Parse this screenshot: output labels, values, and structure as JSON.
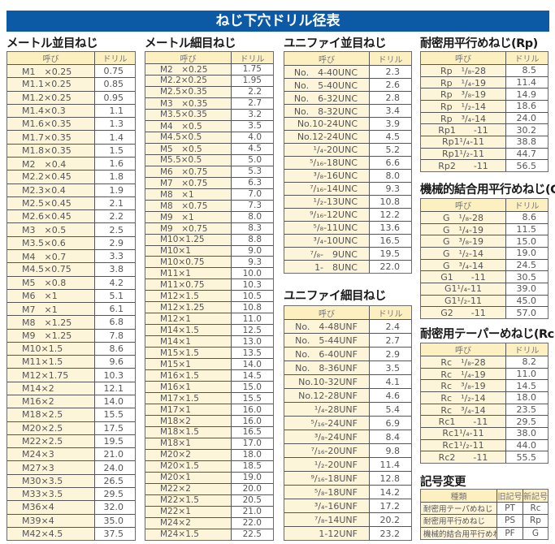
{
  "title": "ねじ下穴ドリル径表",
  "tables": {
    "metric_coarse": {
      "title": "メートル並目ねじ",
      "headers": [
        "呼び",
        "ドリル"
      ],
      "rows": [
        [
          "M1　×0.25",
          "0.75"
        ],
        [
          "M1.1×0.25",
          "0.85"
        ],
        [
          "M1.2×0.25",
          "0.95"
        ],
        [
          "M1.4×0.3",
          "1.1"
        ],
        [
          "M1.6×0.35",
          "1.3"
        ],
        [
          "M1.7×0.35",
          "1.4"
        ],
        [
          "M1.8×0.35",
          "1.5"
        ],
        [
          "M2　×0.4",
          "1.6"
        ],
        [
          "M2.2×0.45",
          "1.8"
        ],
        [
          "M2.3×0.4",
          "1.9"
        ],
        [
          "M2.5×0.45",
          "2.1"
        ],
        [
          "M2.6×0.45",
          "2.2"
        ],
        [
          "M3　×0.5",
          "2.5"
        ],
        [
          "M3.5×0.6",
          "2.9"
        ],
        [
          "M4　×0.7",
          "3.3"
        ],
        [
          "M4.5×0.75",
          "3.8"
        ],
        [
          "M5　×0.8",
          "4.2"
        ],
        [
          "M6　×1",
          "5.1"
        ],
        [
          "M7　×1",
          "6.1"
        ],
        [
          "M8　×1.25",
          "6.8"
        ],
        [
          "M9　×1.25",
          "7.8"
        ],
        [
          "M10×1.5",
          "8.6"
        ],
        [
          "M11×1.5",
          "9.6"
        ],
        [
          "M12×1.75",
          "10.3"
        ],
        [
          "M14×2",
          "12.1"
        ],
        [
          "M16×2",
          "14.0"
        ],
        [
          "M18×2.5",
          "15.5"
        ],
        [
          "M20×2.5",
          "17.5"
        ],
        [
          "M22×2.5",
          "19.5"
        ],
        [
          "M24×3",
          "21.0"
        ],
        [
          "M27×3",
          "24.0"
        ],
        [
          "M30×3.5",
          "26.5"
        ],
        [
          "M33×3.5",
          "29.5"
        ],
        [
          "M36×4",
          "32.0"
        ],
        [
          "M39×4",
          "35.0"
        ],
        [
          "M42×4.5",
          "37.5"
        ]
      ]
    },
    "metric_fine": {
      "title": "メートル細目ねじ",
      "headers": [
        "呼び",
        "ドリル"
      ],
      "rows": [
        [
          "M2　×0.25",
          "1.75"
        ],
        [
          "M2.2×0.25",
          "1.95"
        ],
        [
          "M2.5×0.35",
          "2.2"
        ],
        [
          "M3　×0.35",
          "2.7"
        ],
        [
          "M3.5×0.35",
          "3.2"
        ],
        [
          "M4　×0.5",
          "3.5"
        ],
        [
          "M4.5×0.5",
          "4.0"
        ],
        [
          "M5　×0.5",
          "4.5"
        ],
        [
          "M5.5×0.5",
          "5.0"
        ],
        [
          "M6　×0.75",
          "5.3"
        ],
        [
          "M7　×0.75",
          "6.3"
        ],
        [
          "M8　×1",
          "7.0"
        ],
        [
          "M8　×0.75",
          "7.3"
        ],
        [
          "M9　×1",
          "8.0"
        ],
        [
          "M9　×0.75",
          "8.3"
        ],
        [
          "M10×1.25",
          "8.8"
        ],
        [
          "M10×1",
          "9.0"
        ],
        [
          "M10×0.75",
          "9.3"
        ],
        [
          "M11×1",
          "10.0"
        ],
        [
          "M11×0.75",
          "10.3"
        ],
        [
          "M12×1.5",
          "10.5"
        ],
        [
          "M12×1.25",
          "10.8"
        ],
        [
          "M12×1",
          "11.0"
        ],
        [
          "M14×1.5",
          "12.5"
        ],
        [
          "M14×1",
          "13.0"
        ],
        [
          "M15×1.5",
          "13.5"
        ],
        [
          "M15×1",
          "14.0"
        ],
        [
          "M16×1.5",
          "14.5"
        ],
        [
          "M16×1",
          "15.0"
        ],
        [
          "M17×1.5",
          "15.5"
        ],
        [
          "M17×1",
          "16.0"
        ],
        [
          "M18×2",
          "16.0"
        ],
        [
          "M18×1.5",
          "16.5"
        ],
        [
          "M18×1",
          "17.0"
        ],
        [
          "M20×2",
          "18.0"
        ],
        [
          "M20×1.5",
          "18.5"
        ],
        [
          "M20×1",
          "19.0"
        ],
        [
          "M22×2",
          "20.0"
        ],
        [
          "M22×1.5",
          "20.5"
        ],
        [
          "M22×1",
          "21.0"
        ],
        [
          "M24×2",
          "22.0"
        ],
        [
          "M24×1.5",
          "22.5"
        ]
      ]
    },
    "unc": {
      "title": "ユニファイ並目ねじ",
      "headers": [
        "呼び",
        "ドリル"
      ],
      "rows": [
        [
          "No.　4-40UNC",
          "2.3"
        ],
        [
          "No.　5-40UNC",
          "2.6"
        ],
        [
          "No.　6-32UNC",
          "2.8"
        ],
        [
          "No.　8-32UNC",
          "3.4"
        ],
        [
          "No.10-24UNC",
          "3.9"
        ],
        [
          "No.12-24UNC",
          "4.5"
        ],
        [
          "¹/₄-20UNC",
          "5.2"
        ],
        [
          "⁵/₁₆-18UNC",
          "6.6"
        ],
        [
          "³/₈-16UNC",
          "8.0"
        ],
        [
          "⁷/₁₆-14UNC",
          "9.3"
        ],
        [
          "¹/₂-13UNC",
          "10.8"
        ],
        [
          "⁹/₁₆-12UNC",
          "12.2"
        ],
        [
          "⁵/₈-11UNC",
          "13.6"
        ],
        [
          "³/₄-10UNC",
          "16.5"
        ],
        [
          "⁷/₈-　9UNC",
          "19.5"
        ],
        [
          "1-　8UNC",
          "22.0"
        ]
      ]
    },
    "unf": {
      "title": "ユニファイ細目ねじ",
      "headers": [
        "呼び",
        "ドリル"
      ],
      "rows": [
        [
          "No.　4-48UNF",
          "2.4"
        ],
        [
          "No.　5-44UNF",
          "2.7"
        ],
        [
          "No.　6-40UNF",
          "2.9"
        ],
        [
          "No.　8-36UNF",
          "3.5"
        ],
        [
          "No.10-32UNF",
          "4.1"
        ],
        [
          "No.12-28UNF",
          "4.6"
        ],
        [
          "¹/₄-28UNF",
          "5.4"
        ],
        [
          "⁵/₁₆-24UNF",
          "6.9"
        ],
        [
          "³/₈-24UNF",
          "8.4"
        ],
        [
          "⁷/₁₆-20UNF",
          "9.8"
        ],
        [
          "¹/₂-20UNF",
          "11.4"
        ],
        [
          "⁹/₁₆-18UNF",
          "12.8"
        ],
        [
          "⁵/₈-18UNF",
          "14.2"
        ],
        [
          "³/₄-16UNF",
          "17.2"
        ],
        [
          "⁷/₈-14UNF",
          "20.2"
        ],
        [
          "1-12UNF",
          "23.2"
        ]
      ]
    },
    "rp": {
      "title": "耐密用平行めねじ(Rp)",
      "headers": [
        "呼び",
        "ドリル"
      ],
      "rows": [
        [
          "Rp　¹/₈-28",
          "8.5"
        ],
        [
          "Rp　¹/₄-19",
          "11.4"
        ],
        [
          "Rp　³/₈-19",
          "14.9"
        ],
        [
          "Rp　¹/₂-14",
          "18.6"
        ],
        [
          "Rp　³/₄-14",
          "24.0"
        ],
        [
          "Rp1　　-11",
          "30.2"
        ],
        [
          "Rp1¹/₄-11",
          "38.8"
        ],
        [
          "Rp1¹/₂-11",
          "44.7"
        ],
        [
          "Rp2　　-11",
          "56.5"
        ]
      ]
    },
    "g": {
      "title": "機械的結合用平行めねじ(G)",
      "headers": [
        "呼び",
        "ドリル"
      ],
      "rows": [
        [
          "G　¹/₈-28",
          "8.6"
        ],
        [
          "G　¹/₄-19",
          "11.5"
        ],
        [
          "G　³/₈-19",
          "15.0"
        ],
        [
          "G　¹/₂-14",
          "19.0"
        ],
        [
          "G　³/₄-14",
          "24.5"
        ],
        [
          "G1　　-11",
          "30.5"
        ],
        [
          "G1¹/₄-11",
          "39.0"
        ],
        [
          "G1¹/₂-11",
          "45.0"
        ],
        [
          "G2　　-11",
          "57.0"
        ]
      ]
    },
    "rc": {
      "title": "耐密用テーパーめねじ(Rc)",
      "headers": [
        "呼び",
        "ドリル"
      ],
      "rows": [
        [
          "Rc　¹/₈-28",
          "8.2"
        ],
        [
          "Rc　¹/₄-19",
          "11.0"
        ],
        [
          "Rc　³/₈-19",
          "14.5"
        ],
        [
          "Rc　¹/₂-14",
          "18.0"
        ],
        [
          "Rc　³/₄-14",
          "23.5"
        ],
        [
          "Rc1　　-11",
          "29.5"
        ],
        [
          "Rc1¹/₄-11",
          "38.0"
        ],
        [
          "Rc1¹/₂-11",
          "44.0"
        ],
        [
          "Rc2　　-11",
          "55.5"
        ]
      ]
    },
    "symbols": {
      "title": "記号変更",
      "headers": [
        "種類",
        "旧記号",
        "新記号"
      ],
      "rows": [
        [
          "耐密用テーパめねじ",
          "PT",
          "Rc"
        ],
        [
          "耐密用平行めねじ",
          "PS",
          "Rp"
        ],
        [
          "機械的結合用平行めねじ",
          "PF",
          "G"
        ]
      ]
    }
  }
}
